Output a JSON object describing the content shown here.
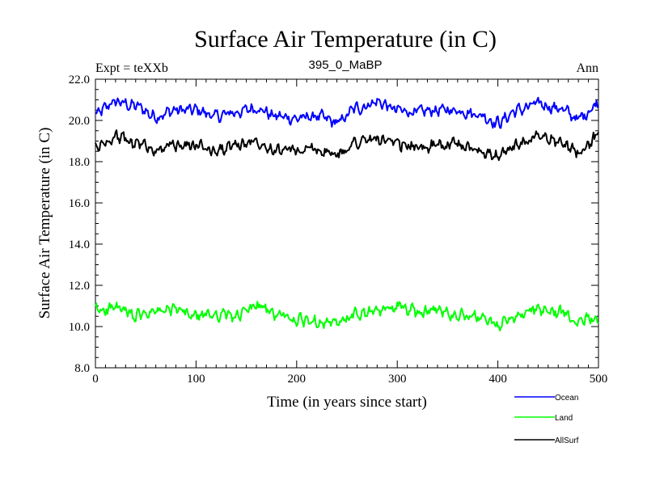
{
  "chart_data": {
    "type": "line",
    "title": "Surface Air Temperature (in C)",
    "subtitle": "395_0_MaBP",
    "left_label": "Expt = teXXb",
    "right_label": "Ann",
    "xlabel": "Time (in years since start)",
    "ylabel": "Surface Air Temperature (in C)",
    "xlim": [
      0,
      500
    ],
    "ylim": [
      8.0,
      22.0
    ],
    "xticks": [
      0,
      100,
      200,
      300,
      400,
      500
    ],
    "xtick_labels": [
      "0",
      "100",
      "200",
      "300",
      "400",
      "500"
    ],
    "yticks": [
      8.0,
      10.0,
      12.0,
      14.0,
      16.0,
      18.0,
      20.0,
      22.0
    ],
    "ytick_labels": [
      "8.0",
      "10.0",
      "12.0",
      "14.0",
      "16.0",
      "18.0",
      "20.0",
      "22.0"
    ],
    "grid": false,
    "legend_position": "bottom-right, below plot",
    "series": [
      {
        "name": "Ocean",
        "color": "#0000ff",
        "x": [
          0,
          20,
          40,
          60,
          80,
          100,
          120,
          140,
          160,
          180,
          200,
          220,
          240,
          260,
          280,
          300,
          320,
          340,
          360,
          380,
          400,
          420,
          440,
          460,
          480,
          500
        ],
        "values": [
          20.3,
          20.9,
          20.7,
          20.2,
          20.5,
          20.5,
          20.2,
          20.4,
          20.6,
          20.2,
          20.1,
          20.2,
          19.9,
          20.6,
          20.9,
          20.5,
          20.4,
          20.5,
          20.5,
          20.3,
          19.9,
          20.5,
          20.8,
          20.6,
          20.1,
          20.8
        ]
      },
      {
        "name": "Land",
        "color": "#00ff00",
        "x": [
          0,
          20,
          40,
          60,
          80,
          100,
          120,
          140,
          160,
          180,
          200,
          220,
          240,
          260,
          280,
          300,
          320,
          340,
          360,
          380,
          400,
          420,
          440,
          460,
          480,
          500
        ],
        "values": [
          10.8,
          10.9,
          10.5,
          10.7,
          10.8,
          10.5,
          10.6,
          10.5,
          11.0,
          10.6,
          10.3,
          10.3,
          10.1,
          10.6,
          10.7,
          11.0,
          10.7,
          10.8,
          10.6,
          10.4,
          10.1,
          10.5,
          10.8,
          10.7,
          10.4,
          10.5
        ]
      },
      {
        "name": "AllSurf",
        "color": "#000000",
        "x": [
          0,
          20,
          40,
          60,
          80,
          100,
          120,
          140,
          160,
          180,
          200,
          220,
          240,
          260,
          280,
          300,
          320,
          340,
          360,
          380,
          400,
          420,
          440,
          460,
          480,
          500
        ],
        "values": [
          18.7,
          19.2,
          18.9,
          18.6,
          18.8,
          18.8,
          18.5,
          18.8,
          19.0,
          18.6,
          18.5,
          18.6,
          18.3,
          19.0,
          19.1,
          18.8,
          18.7,
          18.8,
          18.8,
          18.6,
          18.3,
          18.8,
          19.2,
          19.0,
          18.5,
          19.2
        ]
      }
    ]
  }
}
